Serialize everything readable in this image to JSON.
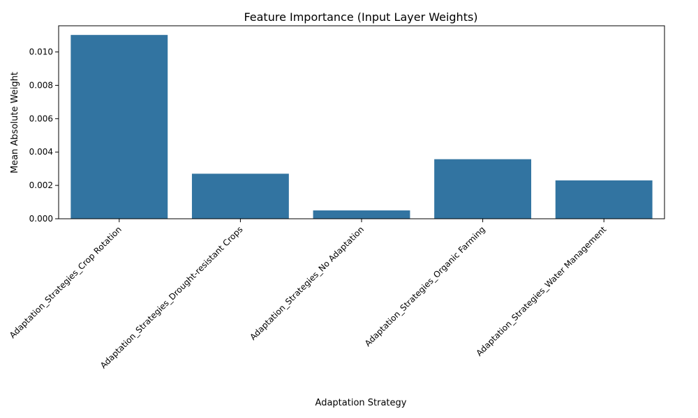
{
  "chart_data": {
    "type": "bar",
    "title": "Feature Importance (Input Layer Weights)",
    "xlabel": "Adaptation Strategy",
    "ylabel": "Mean Absolute Weight",
    "categories": [
      "Adaptation_Strategies_Crop Rotation",
      "Adaptation_Strategies_Drought-resistant Crops",
      "Adaptation_Strategies_No Adaptation",
      "Adaptation_Strategies_Organic Farming",
      "Adaptation_Strategies_Water Management"
    ],
    "values": [
      0.01102,
      0.0027,
      0.0005,
      0.00357,
      0.0023
    ],
    "ylim": [
      0,
      0.01157
    ],
    "yticks": [
      0.0,
      0.002,
      0.004,
      0.006,
      0.008,
      0.01
    ],
    "ytick_labels": [
      "0.000",
      "0.002",
      "0.004",
      "0.006",
      "0.008",
      "0.010"
    ],
    "bar_color": "#3274a1",
    "grid": false,
    "legend": "none"
  }
}
